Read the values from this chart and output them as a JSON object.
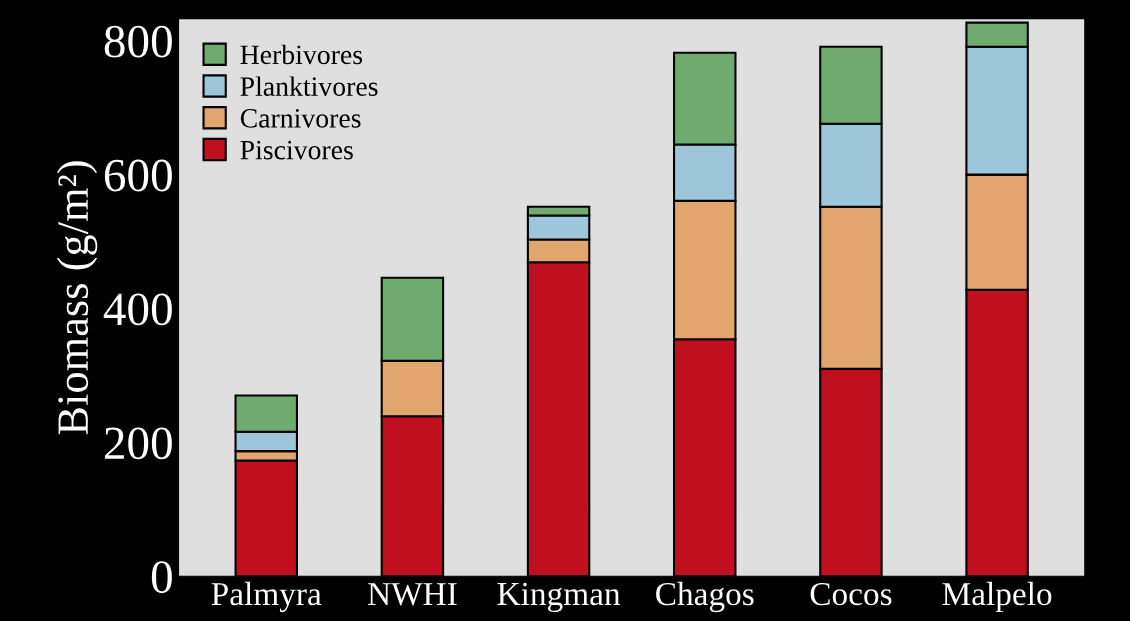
{
  "chart_data": {
    "type": "bar",
    "stacked": true,
    "ylabel": "Biomass (g/m²)",
    "categories": [
      "Palmyra",
      "NWHI",
      "Kingman",
      "Chagos",
      "Cocos",
      "Malpelo"
    ],
    "series": [
      {
        "name": "Piscivores",
        "color": "#c01020",
        "values": [
          173,
          239,
          469,
          354,
          310,
          428
        ]
      },
      {
        "name": "Carnivores",
        "color": "#e2a56e",
        "values": [
          14,
          83,
          34,
          207,
          242,
          172
        ]
      },
      {
        "name": "Planktivores",
        "color": "#9ec6da",
        "values": [
          29,
          0,
          36,
          84,
          124,
          191
        ]
      },
      {
        "name": "Herbivores",
        "color": "#6faa6e",
        "values": [
          54,
          124,
          13,
          137,
          115,
          36
        ]
      }
    ],
    "ylim": [
      0,
      833
    ],
    "yticks": [
      0,
      200,
      400,
      600,
      800
    ],
    "grid": false,
    "legend": "top left"
  }
}
